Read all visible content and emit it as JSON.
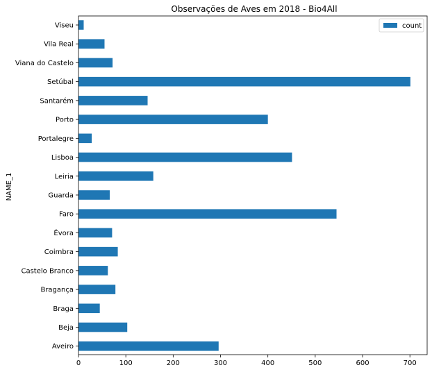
{
  "chart_data": {
    "type": "bar",
    "orientation": "horizontal",
    "title": "Observações de Aves em 2018 - Bio4All",
    "ylabel": "NAME_1",
    "xlabel": "",
    "xlim": [
      0,
      740
    ],
    "xticks": [
      0,
      100,
      200,
      300,
      400,
      500,
      600,
      700
    ],
    "grid": false,
    "legend_position": "top-right",
    "categories": [
      "Viseu",
      "Vila Real",
      "Viana do Castelo",
      "Setúbal",
      "Santarém",
      "Porto",
      "Portalegre",
      "Lisboa",
      "Leiria",
      "Guarda",
      "Faro",
      "Évora",
      "Coimbra",
      "Castelo Branco",
      "Bragança",
      "Braga",
      "Beja",
      "Aveiro"
    ],
    "series": [
      {
        "name": "count",
        "color": "#1f77b4",
        "values": [
          11,
          55,
          72,
          701,
          146,
          400,
          28,
          451,
          158,
          66,
          545,
          71,
          83,
          62,
          78,
          45,
          103,
          296
        ]
      }
    ]
  }
}
